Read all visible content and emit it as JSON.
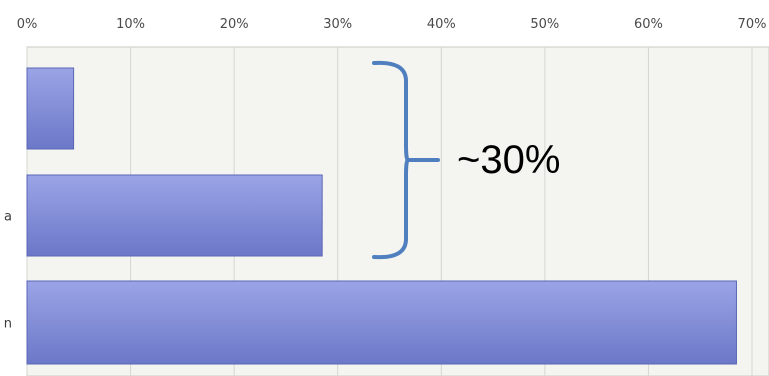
{
  "chart_data": {
    "type": "bar",
    "orientation": "horizontal",
    "categories": [
      "",
      "a",
      "n"
    ],
    "values": [
      4.5,
      28.5,
      68.5
    ],
    "value_unit": "%",
    "xlim": [
      0,
      70
    ],
    "xticks": [
      "0%",
      "10%",
      "20%",
      "30%",
      "40%",
      "50%",
      "60%",
      "70%"
    ],
    "grid": true,
    "title": "",
    "xlabel": "",
    "ylabel": "",
    "annotation": {
      "text": "~30%",
      "spans_categories": [
        0,
        1
      ],
      "shape": "right curly brace"
    },
    "colors": {
      "bar_top": "#9aa4e6",
      "bar_bottom": "#6c78c8",
      "bar_stroke": "#5a66b5",
      "plot_bg": "#f4f5f1",
      "grid": "#d4d6d0",
      "brace": "#4f7fbf"
    }
  }
}
